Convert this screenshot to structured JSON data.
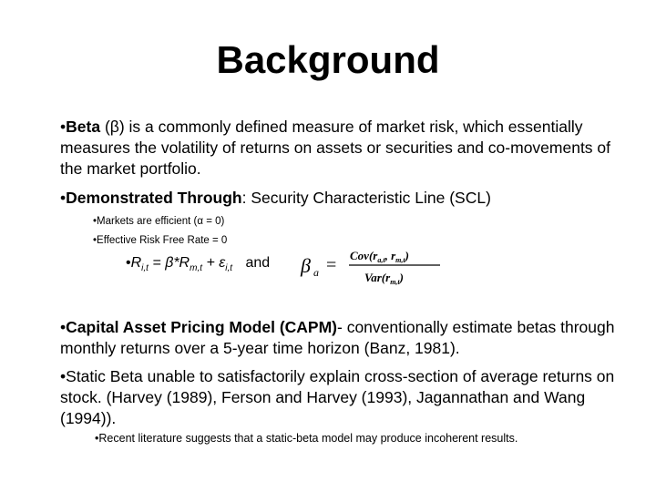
{
  "title": "Background",
  "bullet1": {
    "bold": "Beta",
    "rest": " (β) is a commonly defined measure of market risk, which essentially measures the volatility of returns on assets or securities and co-movements of the market portfolio."
  },
  "bullet2": {
    "bold": "Demonstrated Through",
    "rest": ": Security Characteristic Line (SCL)",
    "sub1": "Markets are efficient (α = 0)",
    "sub2": "Effective Risk Free Rate = 0"
  },
  "equation": {
    "lhs": "R",
    "lhs_sub": "i,t",
    "mid": " = β*R",
    "mid_sub": "m,t",
    "plus": " + ε",
    "eps_sub": "i,t",
    "and": "and",
    "beta_symbol": "β",
    "beta_sub": "a",
    "equals": "=",
    "num": "Cov(r",
    "num_sub1": "a,t",
    "num_mid": ", r",
    "num_sub2": "m,t",
    "num_end": ")",
    "den": "Var(r",
    "den_sub": "m,t",
    "den_end": ")"
  },
  "bullet3": {
    "bold": "Capital Asset Pricing Model (CAPM)",
    "rest": "- conventionally estimate betas through monthly returns over a 5-year time horizon (Banz, 1981)."
  },
  "bullet4": {
    "text": "Static Beta unable to satisfactorily explain cross-section of average returns on stock. (Harvey (1989), Ferson and Harvey (1993), Jagannathan and Wang (1994)).",
    "sub": "Recent literature suggests that a static-beta model may produce incoherent results."
  },
  "bullet_char": "•"
}
